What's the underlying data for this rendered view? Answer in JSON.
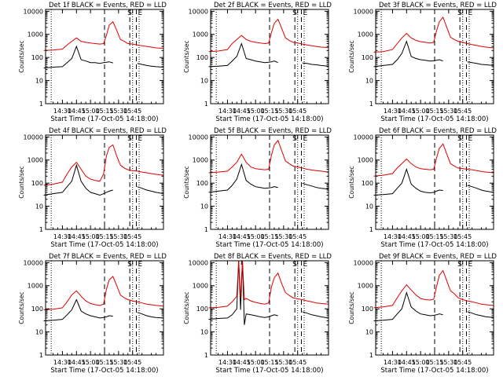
{
  "figure": {
    "rows": 3,
    "cols": 3,
    "legend_note": "BLACK = Events, RED = LLD",
    "colors": {
      "events": "#000000",
      "lld": "#dd0000",
      "axis": "#000000"
    }
  },
  "chart_data": [
    {
      "type": "line",
      "title": "Det 1f BLACK = Events, RED = LLD",
      "xlabel": "Start Time (17-Oct-05 14:18:00)",
      "ylabel": "Counts/sec",
      "xticks": [
        "14:30",
        "14:45",
        "15:00",
        "15:15",
        "15:30",
        "15:45"
      ],
      "yticks": [
        "1",
        "10",
        "100",
        "1000",
        "10000"
      ],
      "ylim": [
        1,
        12000
      ],
      "xlim_min": [
        -20,
        108
      ],
      "markers": [
        "S",
        "E"
      ],
      "marker_times": [
        45,
        72,
        79
      ],
      "dotted_times": [
        -12,
        75,
        82
      ],
      "x": [
        -20,
        -10,
        0,
        5,
        10,
        15,
        20,
        25,
        30,
        35,
        40,
        44,
        47,
        50,
        54,
        58,
        62,
        66,
        70,
        75,
        80,
        85,
        90,
        95,
        100,
        108
      ],
      "series": [
        {
          "name": "Events",
          "values": [
            35,
            38,
            40,
            60,
            90,
            300,
            80,
            70,
            60,
            60,
            55,
            60,
            62,
            65,
            58,
            null,
            null,
            null,
            null,
            null,
            55,
            50,
            45,
            42,
            40,
            38
          ]
        },
        {
          "name": "LLD",
          "values": [
            200,
            210,
            230,
            350,
            500,
            700,
            500,
            450,
            420,
            400,
            380,
            400,
            900,
            2500,
            3500,
            1500,
            600,
            500,
            400,
            380,
            350,
            320,
            300,
            280,
            260,
            250
          ]
        }
      ]
    },
    {
      "type": "line",
      "title": "Det 2f BLACK = Events, RED = LLD",
      "xlabel": "Start Time (17-Oct-05 14:18:00)",
      "ylabel": "Counts/sec",
      "xticks": [
        "14:30",
        "14:45",
        "15:00",
        "15:15",
        "15:30",
        "15:45"
      ],
      "yticks": [
        "1",
        "10",
        "100",
        "1000",
        "10000"
      ],
      "ylim": [
        1,
        12000
      ],
      "markers": [
        "S",
        "E"
      ],
      "marker_times": [
        45,
        72,
        79
      ],
      "dotted_times": [
        -12,
        75,
        82
      ],
      "x": [
        -20,
        -10,
        0,
        5,
        10,
        15,
        20,
        25,
        30,
        35,
        40,
        44,
        47,
        50,
        54,
        58,
        62,
        66,
        70,
        75,
        80,
        85,
        90,
        95,
        100,
        108
      ],
      "series": [
        {
          "name": "Events",
          "values": [
            40,
            42,
            45,
            70,
            110,
            400,
            90,
            80,
            70,
            65,
            60,
            62,
            65,
            70,
            60,
            null,
            null,
            null,
            null,
            null,
            58,
            55,
            50,
            48,
            45,
            42
          ]
        },
        {
          "name": "LLD",
          "values": [
            180,
            190,
            220,
            400,
            600,
            900,
            600,
            500,
            450,
            420,
            400,
            420,
            1200,
            3000,
            4500,
            1800,
            700,
            550,
            450,
            420,
            380,
            350,
            320,
            300,
            280,
            270
          ]
        }
      ]
    },
    {
      "type": "line",
      "title": "Det 3f BLACK = Events, RED = LLD",
      "xlabel": "Start Time (17-Oct-05 14:18:00)",
      "ylabel": "Counts/sec",
      "xticks": [
        "14:30",
        "14:45",
        "15:00",
        "15:15",
        "15:30",
        "15:45"
      ],
      "yticks": [
        "1",
        "10",
        "100",
        "1000",
        "10000"
      ],
      "ylim": [
        1,
        12000
      ],
      "markers": [
        "S",
        "E"
      ],
      "marker_times": [
        45,
        72,
        79
      ],
      "dotted_times": [
        -12,
        75,
        82
      ],
      "x": [
        -20,
        -10,
        0,
        5,
        10,
        15,
        20,
        25,
        30,
        35,
        40,
        44,
        47,
        50,
        54,
        58,
        62,
        66,
        70,
        75,
        80,
        85,
        90,
        95,
        100,
        108
      ],
      "series": [
        {
          "name": "Events",
          "values": [
            40,
            45,
            50,
            80,
            150,
            500,
            110,
            90,
            80,
            75,
            70,
            72,
            75,
            80,
            70,
            null,
            null,
            null,
            null,
            null,
            65,
            60,
            55,
            50,
            48,
            45
          ]
        },
        {
          "name": "LLD",
          "values": [
            170,
            180,
            220,
            400,
            700,
            1100,
            700,
            550,
            480,
            450,
            420,
            450,
            1400,
            3500,
            5500,
            2000,
            750,
            600,
            500,
            450,
            400,
            360,
            330,
            300,
            280,
            260
          ]
        }
      ]
    },
    {
      "type": "line",
      "title": "Det 4f BLACK = Events, RED = LLD",
      "xlabel": "Start Time (17-Oct-05 14:18:00)",
      "ylabel": "Counts/sec",
      "xticks": [
        "14:30",
        "14:45",
        "15:00",
        "15:15",
        "15:30",
        "15:45"
      ],
      "yticks": [
        "1",
        "10",
        "100",
        "1000",
        "10000"
      ],
      "ylim": [
        1,
        12000
      ],
      "markers": [
        "S",
        "E"
      ],
      "marker_times": [
        45,
        72,
        79
      ],
      "dotted_times": [
        -12,
        75,
        82
      ],
      "x": [
        -20,
        -10,
        0,
        5,
        10,
        15,
        20,
        25,
        30,
        35,
        40,
        44,
        47,
        50,
        54,
        58,
        62,
        66,
        70,
        75,
        80,
        85,
        90,
        95,
        100,
        108
      ],
      "series": [
        {
          "name": "Events",
          "values": [
            30,
            35,
            40,
            70,
            120,
            600,
            120,
            60,
            40,
            35,
            30,
            35,
            40,
            45,
            50,
            null,
            null,
            null,
            null,
            null,
            70,
            60,
            50,
            45,
            40,
            35
          ]
        },
        {
          "name": "LLD",
          "values": [
            80,
            90,
            110,
            250,
            500,
            800,
            400,
            200,
            150,
            130,
            120,
            250,
            1500,
            3500,
            4500,
            1500,
            600,
            450,
            380,
            350,
            330,
            300,
            280,
            260,
            240,
            220
          ]
        }
      ]
    },
    {
      "type": "line",
      "title": "Det 5f BLACK = Events, RED = LLD",
      "xlabel": "Start Time (17-Oct-05 14:18:00)",
      "ylabel": "Counts/sec",
      "xticks": [
        "14:30",
        "14:45",
        "15:00",
        "15:15",
        "15:30",
        "15:45"
      ],
      "yticks": [
        "1",
        "10",
        "100",
        "1000",
        "10000"
      ],
      "ylim": [
        1,
        12000
      ],
      "markers": [
        "S",
        "E"
      ],
      "marker_times": [
        45,
        72,
        79
      ],
      "dotted_times": [
        -12,
        75,
        82
      ],
      "x": [
        -20,
        -10,
        0,
        5,
        10,
        15,
        20,
        25,
        30,
        35,
        40,
        44,
        47,
        50,
        54,
        58,
        62,
        66,
        70,
        75,
        80,
        85,
        90,
        95,
        100,
        108
      ],
      "series": [
        {
          "name": "Events",
          "values": [
            40,
            45,
            50,
            80,
            150,
            650,
            130,
            90,
            70,
            65,
            60,
            62,
            65,
            70,
            65,
            null,
            null,
            null,
            null,
            null,
            100,
            85,
            75,
            65,
            60,
            55
          ]
        },
        {
          "name": "LLD",
          "values": [
            280,
            300,
            330,
            500,
            800,
            1800,
            800,
            500,
            420,
            400,
            380,
            400,
            1600,
            4500,
            7000,
            2500,
            900,
            700,
            550,
            500,
            450,
            400,
            370,
            350,
            330,
            300
          ]
        }
      ]
    },
    {
      "type": "line",
      "title": "Det 6f BLACK = Events, RED = LLD",
      "xlabel": "Start Time (17-Oct-05 14:18:00)",
      "ylabel": "Counts/sec",
      "xticks": [
        "14:30",
        "14:45",
        "15:00",
        "15:15",
        "15:30",
        "15:45"
      ],
      "yticks": [
        "1",
        "10",
        "100",
        "1000",
        "10000"
      ],
      "ylim": [
        1,
        12000
      ],
      "markers": [
        "S",
        "E"
      ],
      "marker_times": [
        45,
        72,
        79
      ],
      "dotted_times": [
        -12,
        75,
        82
      ],
      "x": [
        -20,
        -10,
        0,
        5,
        10,
        15,
        20,
        25,
        30,
        35,
        40,
        44,
        47,
        50,
        54,
        58,
        62,
        66,
        70,
        75,
        80,
        85,
        90,
        95,
        100,
        108
      ],
      "series": [
        {
          "name": "Events",
          "values": [
            30,
            32,
            35,
            60,
            100,
            400,
            90,
            60,
            45,
            40,
            38,
            40,
            45,
            50,
            48,
            null,
            null,
            null,
            null,
            null,
            80,
            70,
            60,
            50,
            45,
            40
          ]
        },
        {
          "name": "LLD",
          "values": [
            200,
            220,
            260,
            450,
            700,
            1100,
            700,
            500,
            420,
            400,
            380,
            400,
            1200,
            3200,
            5000,
            1800,
            700,
            550,
            450,
            420,
            400,
            380,
            350,
            320,
            300,
            280
          ]
        }
      ]
    },
    {
      "type": "line",
      "title": "Det 7f BLACK = Events, RED = LLD",
      "xlabel": "Start Time (17-Oct-05 14:18:00)",
      "ylabel": "Counts/sec",
      "xticks": [
        "14:30",
        "14:45",
        "15:00",
        "15:15",
        "15:30",
        "15:45"
      ],
      "yticks": [
        "1",
        "10",
        "100",
        "1000",
        "10000"
      ],
      "ylim": [
        1,
        12000
      ],
      "markers": [
        "S",
        "E"
      ],
      "marker_times": [
        45,
        72,
        79
      ],
      "dotted_times": [
        -12,
        75,
        82
      ],
      "x": [
        -20,
        -10,
        0,
        5,
        10,
        15,
        20,
        25,
        30,
        35,
        40,
        44,
        47,
        50,
        54,
        58,
        62,
        66,
        70,
        75,
        80,
        85,
        90,
        95,
        100,
        108
      ],
      "series": [
        {
          "name": "Events",
          "values": [
            30,
            32,
            35,
            55,
            90,
            250,
            80,
            60,
            50,
            45,
            40,
            42,
            45,
            50,
            48,
            null,
            null,
            null,
            null,
            null,
            70,
            60,
            50,
            45,
            42,
            40
          ]
        },
        {
          "name": "LLD",
          "values": [
            90,
            95,
            110,
            200,
            400,
            600,
            350,
            220,
            170,
            150,
            140,
            160,
            700,
            1800,
            2500,
            1000,
            400,
            300,
            250,
            220,
            200,
            180,
            160,
            150,
            140,
            130
          ]
        }
      ]
    },
    {
      "type": "line",
      "title": "Det 8f BLACK = Events, RED = LLD",
      "xlabel": "Start Time (17-Oct-05 14:18:00)",
      "ylabel": "Counts/sec",
      "xticks": [
        "14:30",
        "14:45",
        "15:00",
        "15:15",
        "15:30",
        "15:45"
      ],
      "yticks": [
        "1",
        "10",
        "100",
        "1000",
        "10000"
      ],
      "ylim": [
        1,
        12000
      ],
      "markers": [
        "S",
        "E"
      ],
      "marker_times": [
        45,
        72,
        79
      ],
      "dotted_times": [
        -12,
        75,
        82
      ],
      "x": [
        -20,
        -10,
        0,
        5,
        10,
        12,
        14,
        16,
        18,
        20,
        25,
        30,
        35,
        40,
        44,
        47,
        50,
        54,
        58,
        62,
        66,
        70,
        75,
        80,
        85,
        90,
        95,
        100,
        108
      ],
      "series": [
        {
          "name": "Events",
          "values": [
            35,
            38,
            40,
            55,
            100,
            12000,
            90,
            12000,
            20,
            60,
            55,
            50,
            45,
            42,
            45,
            50,
            55,
            50,
            null,
            null,
            null,
            null,
            null,
            75,
            65,
            55,
            50,
            45,
            40
          ]
        },
        {
          "name": "LLD",
          "values": [
            110,
            115,
            130,
            200,
            350,
            12000,
            300,
            12000,
            250,
            280,
            220,
            190,
            170,
            160,
            180,
            900,
            2200,
            3500,
            1200,
            500,
            380,
            300,
            270,
            250,
            220,
            200,
            180,
            170,
            160
          ]
        }
      ]
    },
    {
      "type": "line",
      "title": "Det 9f BLACK = Events, RED = LLD",
      "xlabel": "Start Time (17-Oct-05 14:18:00)",
      "ylabel": "Counts/sec",
      "xticks": [
        "14:30",
        "14:45",
        "15:00",
        "15:15",
        "15:30",
        "15:45"
      ],
      "yticks": [
        "1",
        "10",
        "100",
        "1000",
        "10000"
      ],
      "ylim": [
        1,
        12000
      ],
      "markers": [
        "S",
        "E"
      ],
      "marker_times": [
        45,
        72,
        79
      ],
      "dotted_times": [
        -12,
        75,
        82
      ],
      "x": [
        -20,
        -10,
        0,
        5,
        10,
        15,
        20,
        25,
        30,
        35,
        40,
        44,
        47,
        50,
        54,
        58,
        62,
        66,
        70,
        75,
        80,
        85,
        90,
        95,
        100,
        108
      ],
      "series": [
        {
          "name": "Events",
          "values": [
            30,
            32,
            35,
            60,
            100,
            500,
            120,
            80,
            60,
            55,
            50,
            52,
            55,
            60,
            55,
            null,
            null,
            null,
            null,
            null,
            75,
            65,
            55,
            50,
            45,
            42
          ]
        },
        {
          "name": "LLD",
          "values": [
            110,
            120,
            140,
            300,
            600,
            1100,
            650,
            400,
            280,
            250,
            240,
            260,
            900,
            2800,
            4500,
            1600,
            600,
            450,
            300,
            250,
            220,
            200,
            180,
            160,
            150,
            140
          ]
        }
      ]
    }
  ]
}
